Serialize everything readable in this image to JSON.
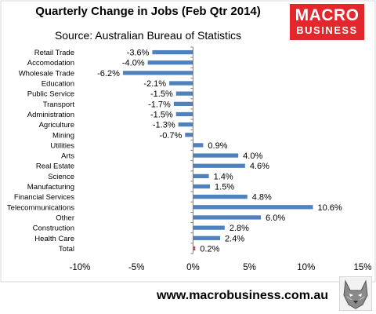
{
  "header": {
    "title": "Quarterly Change in Jobs (Feb Qtr 2014)",
    "subtitle": "Source: Australian Bureau of Statistics"
  },
  "logo": {
    "line1": "MACRO",
    "line2": "BUSINESS",
    "color": "#e3272d"
  },
  "footer": {
    "url": "www.macrobusiness.com.au"
  },
  "icons": {
    "wolf": "wolf-logo-icon"
  },
  "chart_data": {
    "type": "bar",
    "orientation": "horizontal",
    "categories": [
      "Retail Trade",
      "Accomodation",
      "Wholesale Trade",
      "Education",
      "Public Service",
      "Transport",
      "Administration",
      "Agriculture",
      "Mining",
      "Utilities",
      "Arts",
      "Real Estate",
      "Science",
      "Manufacturing",
      "Financial Services",
      "Telecommunications",
      "Other",
      "Construction",
      "Health Care",
      "Total"
    ],
    "values": [
      -3.6,
      -4.0,
      -6.2,
      -2.1,
      -1.5,
      -1.7,
      -1.5,
      -1.3,
      -0.7,
      0.9,
      4.0,
      4.6,
      1.4,
      1.5,
      4.8,
      10.6,
      6.0,
      2.8,
      2.4,
      0.2
    ],
    "data_labels": [
      "-3.6%",
      "-4.0%",
      "-6.2%",
      "-2.1%",
      "-1.5%",
      "-1.7%",
      "-1.5%",
      "-1.3%",
      "-0.7%",
      "0.9%",
      "4.0%",
      "4.6%",
      "1.4%",
      "1.5%",
      "4.8%",
      "10.6%",
      "6.0%",
      "2.8%",
      "2.4%",
      "0.2%"
    ],
    "xlim": [
      -10,
      15
    ],
    "xticks": [
      -10,
      -5,
      0,
      5,
      10,
      15
    ],
    "xtick_labels": [
      "-10%",
      "-5%",
      "0%",
      "5%",
      "10%",
      "15%"
    ],
    "bar_color": "#4f81bd",
    "highlight_color": "#c0504d",
    "highlight_category": "Total",
    "plot_background": "#ffffff",
    "grid": false,
    "legend": "none"
  }
}
